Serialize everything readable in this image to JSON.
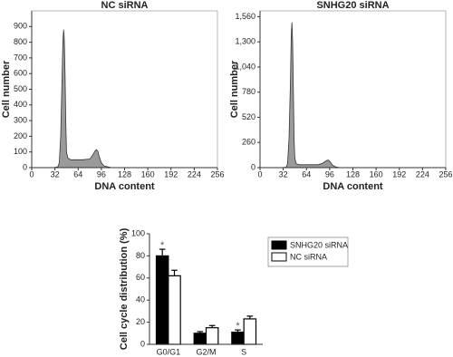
{
  "chart_data": [
    {
      "type": "area",
      "title": "NC siRNA",
      "xlabel": "DNA content",
      "ylabel": "Cell number",
      "color": "#9a9a9a",
      "x": [
        0,
        30,
        36,
        38,
        40,
        42,
        43,
        44,
        45,
        46,
        47,
        48,
        50,
        54,
        60,
        70,
        80,
        84,
        87,
        89,
        91,
        93,
        96,
        100,
        110,
        130,
        160,
        200,
        256
      ],
      "values": [
        0,
        0,
        5,
        30,
        200,
        600,
        800,
        880,
        820,
        600,
        300,
        100,
        60,
        50,
        50,
        50,
        55,
        80,
        105,
        115,
        105,
        70,
        30,
        10,
        0,
        0,
        0,
        0,
        0
      ],
      "xlim": [
        0,
        256
      ],
      "xticks": [
        0,
        32,
        64,
        96,
        128,
        160,
        192,
        224,
        256
      ],
      "ylim": [
        0,
        1000
      ],
      "yticks": [
        0,
        100,
        200,
        300,
        400,
        500,
        600,
        700,
        800,
        900
      ]
    },
    {
      "type": "area",
      "title": "SNHG20 siRNA",
      "xlabel": "DNA content",
      "ylabel": "Cell number",
      "color": "#9a9a9a",
      "x": [
        0,
        30,
        36,
        38,
        40,
        42,
        43,
        44,
        45,
        46,
        47,
        48,
        50,
        54,
        60,
        70,
        80,
        86,
        90,
        93,
        95,
        97,
        100,
        104,
        110,
        130,
        160,
        200,
        256
      ],
      "values": [
        0,
        0,
        5,
        40,
        300,
        900,
        1350,
        1500,
        1300,
        800,
        300,
        100,
        40,
        30,
        30,
        30,
        30,
        45,
        65,
        78,
        75,
        55,
        25,
        8,
        0,
        0,
        0,
        0,
        0
      ],
      "xlim": [
        0,
        256
      ],
      "xticks": [
        0,
        32,
        64,
        96,
        128,
        160,
        192,
        224,
        256
      ],
      "ylim": [
        0,
        1620
      ],
      "yticks": [
        0,
        260,
        520,
        780,
        {
          "value": 1040,
          "label": "1,040"
        },
        {
          "value": 1300,
          "label": "1,300"
        },
        {
          "value": 1560,
          "label": "1,560"
        }
      ]
    },
    {
      "type": "bar",
      "ylabel": "Cell cycle distribution (%)",
      "categories": [
        "G0/G1",
        "G2/M",
        "S"
      ],
      "series": [
        {
          "name": "SNHG20 siRNA",
          "color": "#000000",
          "values": [
            80,
            10,
            11
          ],
          "errors": [
            6,
            1.5,
            2
          ]
        },
        {
          "name": "NC siRNA",
          "color": "#ffffff",
          "values": [
            62,
            15,
            23
          ],
          "errors": [
            5,
            2,
            2.5
          ]
        }
      ],
      "annotations": [
        {
          "text": "*",
          "category": "G0/G1",
          "series": "SNHG20 siRNA"
        },
        {
          "text": "*",
          "category": "S",
          "series": "SNHG20 siRNA"
        }
      ],
      "ylim": [
        0,
        100
      ],
      "yticks": [
        0,
        20,
        40,
        60,
        80,
        100
      ],
      "legend": "upper right"
    }
  ]
}
